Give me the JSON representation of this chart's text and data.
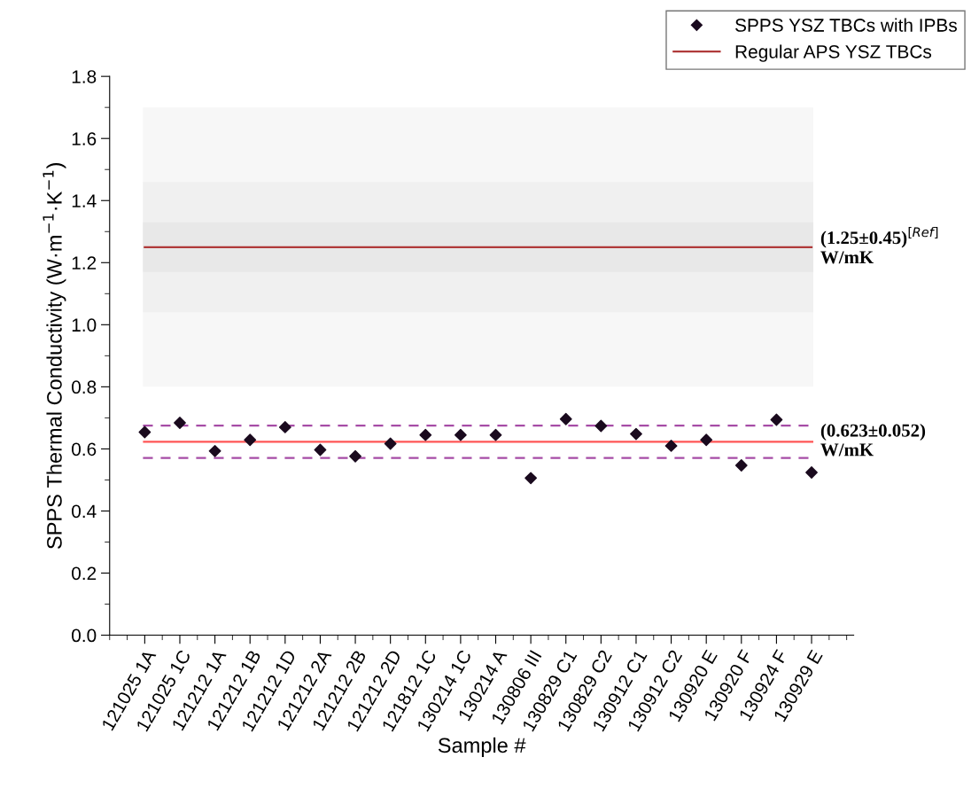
{
  "chart_data": {
    "type": "scatter",
    "xlabel": "Sample #",
    "ylabel": "SPPS Thermal Conductivity (W·m$^{−1}$·K$^{−1}$)",
    "categories": [
      "121025 1A",
      "121025 1C",
      "121212 1A",
      "121212 1B",
      "121212 1D",
      "121212 2A",
      "121212 2B",
      "121212 2D",
      "121812 1C",
      "130214 1C",
      "130214 A",
      "130806 III",
      "130829 C1",
      "130829 C2",
      "130912 C1",
      "130912 C2",
      "130920 E",
      "130920 F",
      "130924 F",
      "130929 E"
    ],
    "series": [
      {
        "name": "SPPS YSZ TBCs with IPBs",
        "color": "#1a0a1e",
        "marker": "diamond",
        "values": [
          0.654,
          0.684,
          0.593,
          0.629,
          0.67,
          0.597,
          0.576,
          0.617,
          0.645,
          0.645,
          0.645,
          0.506,
          0.696,
          0.674,
          0.648,
          0.61,
          0.629,
          0.547,
          0.694,
          0.524
        ]
      },
      {
        "name": "Regular APS YSZ TBCs",
        "type": "line",
        "color": "#b03a3a",
        "marker": "none",
        "values": [
          1.25,
          1.25,
          1.25,
          1.25,
          1.25,
          1.25,
          1.25,
          1.25,
          1.25,
          1.25,
          1.25,
          1.25,
          1.25,
          1.25,
          1.25,
          1.25,
          1.25,
          1.25,
          1.25,
          1.25
        ]
      }
    ],
    "ylim": [
      0,
      1.8
    ],
    "yticks": [
      {
        "value": 0,
        "label": "0.0"
      },
      0.2,
      0.4,
      0.6,
      0.8,
      {
        "value": 1,
        "label": "1.0"
      },
      1.2,
      1.4,
      1.6,
      1.8
    ],
    "ref_lines": [
      {
        "axis": "y",
        "value": 0.623,
        "label": "(0.623±0.052)\nW/mK",
        "color": "#ff5555",
        "line_style": "solid"
      },
      {
        "axis": "y",
        "value": 0.675,
        "color": "#a64ca6",
        "line_style": "dashed"
      },
      {
        "axis": "y",
        "value": 0.571,
        "color": "#a64ca6",
        "line_style": "dashed"
      }
    ],
    "bands": [
      {
        "axis": "y",
        "from": 0.8,
        "to": 1.7,
        "color": "#f7f7f7"
      },
      {
        "axis": "y",
        "from": 1.04,
        "to": 1.46,
        "color": "#f0f0f0"
      },
      {
        "axis": "y",
        "from": 1.17,
        "to": 1.33,
        "color": "#e8e8e8"
      }
    ],
    "annotations": [
      "(1.25±0.45)$^{[Ref]}$\nW/mK"
    ],
    "legend": "top right",
    "grid": false
  }
}
